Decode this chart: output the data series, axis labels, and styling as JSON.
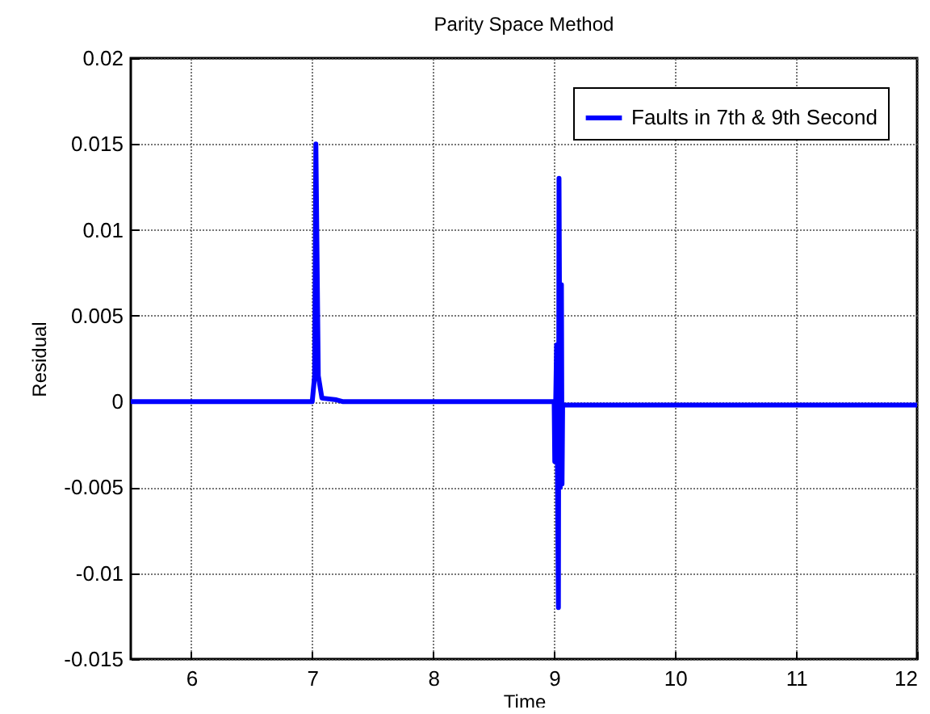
{
  "chart_data": {
    "type": "line",
    "title": "Parity Space Method",
    "xlabel": "Time",
    "ylabel": "Residual",
    "xlim": [
      5.5,
      12
    ],
    "xticks": [
      6,
      7,
      8,
      9,
      10,
      11,
      12
    ],
    "ylim": [
      -0.015,
      0.02
    ],
    "yticks": [
      -0.015,
      -0.01,
      -0.005,
      0,
      0.005,
      0.01,
      0.015,
      0.02
    ],
    "grid": true,
    "legend": "top right",
    "series": [
      {
        "name": "Faults in 7th & 9th Second",
        "color": "#0000ff",
        "x": [
          5.5,
          7.0,
          7.02,
          7.03,
          7.05,
          7.08,
          7.2,
          7.25,
          9.0,
          9.005,
          9.02,
          9.035,
          9.04,
          9.05,
          9.06,
          9.065,
          9.07,
          9.08,
          12
        ],
        "values": [
          0,
          0,
          0.0015,
          0.015,
          0.0015,
          0.0002,
          0.0001,
          0,
          0,
          -0.0035,
          0.0033,
          -0.012,
          0.013,
          -0.005,
          0.0068,
          -0.0048,
          -0.0002,
          -0.0002,
          -0.0002
        ]
      }
    ]
  }
}
